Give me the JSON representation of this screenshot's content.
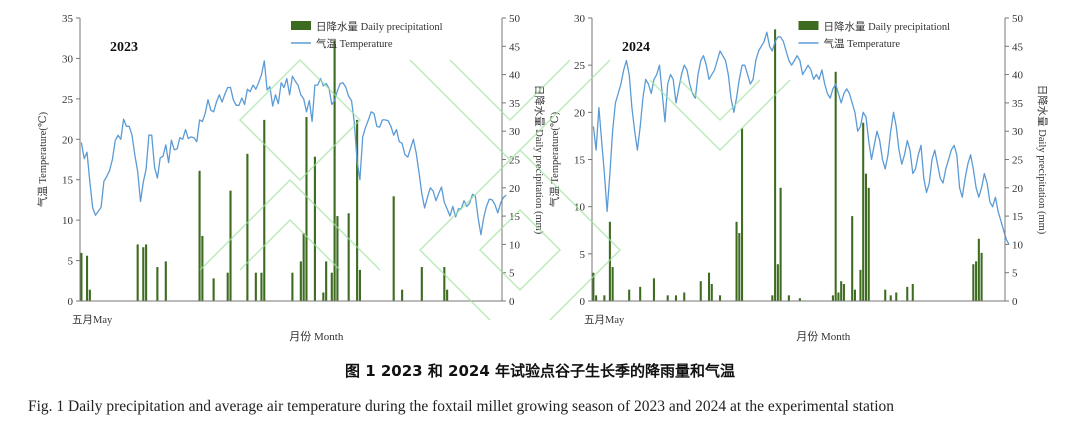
{
  "figure": {
    "caption_cn": "图 1    2023 和 2024 年试验点谷子生长季的降雨量和气温",
    "caption_en": "Fig. 1    Daily precipitation and average air temperature during the foxtail millet growing season of 2023 and 2024 at the experimental station"
  },
  "colors": {
    "bar": "#3d6b1f",
    "line": "#5b9bd5",
    "axis": "#777777",
    "watermark": "#9fe39f"
  },
  "chart_data": [
    {
      "type": "bar+line",
      "panel_label": "2023",
      "ylabel_left": "气温 Temperature(℃)",
      "ylabel_right": "日降水量 Daily precipitation (mm)",
      "xlabel": "月份 Month",
      "x_tick_label": "五月May",
      "legend": [
        "日降水量 Daily precipitationl",
        "气温 Temperature"
      ],
      "legend_position": "top-center",
      "ylim_left": [
        0,
        35
      ],
      "ylim_right": [
        0,
        50
      ],
      "yticks_left": [
        0,
        5,
        10,
        15,
        20,
        25,
        30,
        35
      ],
      "yticks_right": [
        0,
        5,
        10,
        15,
        20,
        25,
        30,
        35,
        40,
        45,
        50
      ],
      "day_count": 150,
      "series": [
        {
          "name": "日降水量 Daily precipitationl",
          "kind": "bar",
          "axis": "right",
          "points": [
            [
              1,
              8.5
            ],
            [
              3,
              8
            ],
            [
              4,
              2
            ],
            [
              21,
              10
            ],
            [
              23,
              9.5
            ],
            [
              24,
              10
            ],
            [
              28,
              6
            ],
            [
              31,
              7
            ],
            [
              43,
              23
            ],
            [
              44,
              11.5
            ],
            [
              48,
              4
            ],
            [
              53,
              5
            ],
            [
              54,
              19.5
            ],
            [
              60,
              26
            ],
            [
              63,
              5
            ],
            [
              65,
              5
            ],
            [
              66,
              32
            ],
            [
              76,
              5
            ],
            [
              79,
              7
            ],
            [
              80,
              12
            ],
            [
              81,
              32.5
            ],
            [
              84,
              25.5
            ],
            [
              87,
              1.5
            ],
            [
              88,
              7
            ],
            [
              90,
              5
            ],
            [
              91,
              46
            ],
            [
              92,
              15
            ],
            [
              96,
              15.5
            ],
            [
              99,
              32
            ],
            [
              100,
              5.5
            ],
            [
              112,
              18.5
            ],
            [
              115,
              2
            ],
            [
              122,
              6
            ],
            [
              130,
              6
            ],
            [
              131,
              2
            ]
          ]
        },
        {
          "name": "气温 Temperature",
          "kind": "line",
          "axis": "left",
          "values": [
            19.6,
            17.6,
            18.4,
            14.8,
            11.5,
            10.6,
            11.1,
            11.6,
            14.8,
            15.4,
            16.1,
            17.5,
            19.8,
            20.5,
            20.0,
            22.5,
            21.6,
            21.6,
            20.5,
            18.0,
            16.0,
            12.3,
            14.7,
            16.3,
            20.5,
            20.5,
            16.5,
            15.2,
            17.7,
            17.9,
            19.3,
            17.1,
            19.9,
            18.7,
            18.8,
            20.2,
            20.0,
            21.2,
            20.1,
            20.3,
            20.2,
            19.7,
            22.4,
            22.2,
            23.2,
            24.9,
            23.6,
            23.4,
            24.6,
            25.5,
            24.6,
            25.6,
            26.4,
            26.4,
            24.9,
            24.2,
            24.2,
            25.1,
            24.3,
            26.2,
            25.9,
            26.7,
            26.2,
            27.0,
            28.0,
            29.7,
            26.1,
            26.5,
            24.1,
            25.5,
            24.4,
            27.0,
            26.4,
            27.5,
            25.5,
            27.8,
            27.2,
            26.7,
            25.5,
            25.0,
            23.4,
            24.8,
            22.2,
            26.7,
            26.7,
            27.5,
            26.6,
            26.9,
            26.3,
            24.3,
            24.8,
            26.0,
            26.9,
            27.0,
            26.4,
            25.3,
            24.8,
            22.1,
            17.3,
            15.0,
            20.3,
            21.5,
            22.4,
            23.4,
            23.2,
            21.6,
            21.5,
            22.4,
            22.4,
            22.3,
            21.6,
            20.5,
            21.2,
            19.7,
            19.5,
            18.1,
            17.8,
            18.9,
            20.0,
            18.3,
            15.9,
            13.3,
            11.5,
            12.8,
            14.0,
            13.6,
            12.4,
            13.3,
            14.1,
            12.2,
            11.4,
            10.5,
            11.7,
            10.4,
            11.4,
            11.4,
            12.4,
            11.7,
            12.1,
            13.2,
            13.0,
            10.3,
            8.2,
            10.3,
            11.7,
            12.6,
            12.5,
            11.9,
            10.9,
            12.1,
            12.8,
            13.1
          ]
        }
      ]
    },
    {
      "type": "bar+line",
      "panel_label": "2024",
      "ylabel_left": "气温 Temperature(℃)",
      "ylabel_right": "日降水量 Daily precipitation (mm)",
      "xlabel": "月份 Month",
      "x_tick_label": "五月May",
      "legend": [
        "日降水量 Daily precipitationl",
        "气温 Temperature"
      ],
      "legend_position": "top-center",
      "ylim_left": [
        0,
        30
      ],
      "ylim_right": [
        0,
        50
      ],
      "yticks_left": [
        0,
        5,
        10,
        15,
        20,
        25,
        30
      ],
      "yticks_right": [
        0,
        5,
        10,
        15,
        20,
        25,
        30,
        35,
        40,
        45,
        50
      ],
      "day_count": 150,
      "series": [
        {
          "name": "日降水量 Daily precipitationl",
          "kind": "bar",
          "axis": "right",
          "points": [
            [
              1,
              5
            ],
            [
              2,
              1
            ],
            [
              5,
              1
            ],
            [
              7,
              14
            ],
            [
              8,
              6
            ],
            [
              14,
              2
            ],
            [
              18,
              2.5
            ],
            [
              23,
              4
            ],
            [
              28,
              1
            ],
            [
              31,
              1
            ],
            [
              34,
              1.5
            ],
            [
              40,
              3.5
            ],
            [
              43,
              5
            ],
            [
              44,
              3
            ],
            [
              47,
              1
            ],
            [
              53,
              14
            ],
            [
              54,
              12
            ],
            [
              55,
              30.5
            ],
            [
              66,
              1
            ],
            [
              67,
              48
            ],
            [
              68,
              6.5
            ],
            [
              69,
              20
            ],
            [
              72,
              1
            ],
            [
              76,
              0.5
            ],
            [
              88,
              1
            ],
            [
              89,
              40.5
            ],
            [
              90,
              1.5
            ],
            [
              91,
              3.5
            ],
            [
              92,
              3
            ],
            [
              95,
              15
            ],
            [
              96,
              2
            ],
            [
              98,
              5.5
            ],
            [
              99,
              31.5
            ],
            [
              100,
              22.5
            ],
            [
              101,
              20
            ],
            [
              107,
              2
            ],
            [
              109,
              1
            ],
            [
              111,
              1.5
            ],
            [
              115,
              2.5
            ],
            [
              117,
              3
            ],
            [
              139,
              6.5
            ],
            [
              140,
              7
            ],
            [
              141,
              11
            ],
            [
              142,
              8.5
            ]
          ]
        },
        {
          "name": "气温 Temperature",
          "kind": "line",
          "axis": "left",
          "values": [
            18.5,
            16.0,
            20.5,
            17.0,
            13.5,
            9.5,
            13.5,
            18.0,
            21.0,
            22.0,
            23.0,
            24.5,
            25.5,
            24.0,
            20.5,
            18.0,
            16.0,
            18.5,
            21.5,
            23.5,
            23.0,
            22.0,
            23.5,
            24.0,
            25.0,
            22.0,
            19.0,
            23.0,
            24.0,
            23.5,
            21.0,
            22.5,
            24.0,
            25.0,
            24.5,
            23.0,
            22.0,
            21.5,
            24.0,
            25.5,
            26.0,
            25.0,
            23.5,
            24.0,
            24.5,
            25.5,
            26.5,
            26.0,
            25.5,
            24.0,
            21.5,
            20.0,
            21.5,
            23.5,
            25.0,
            25.0,
            24.0,
            23.0,
            23.5,
            25.5,
            26.5,
            27.0,
            27.5,
            28.5,
            27.0,
            26.5,
            27.5,
            28.0,
            28.0,
            27.5,
            26.5,
            25.5,
            25.0,
            25.5,
            26.0,
            25.5,
            24.0,
            24.5,
            25.0,
            24.5,
            23.5,
            24.0,
            23.5,
            24.5,
            23.0,
            22.0,
            21.5,
            22.5,
            23.0,
            22.0,
            21.0,
            22.0,
            22.5,
            22.0,
            21.0,
            20.0,
            18.0,
            18.5,
            20.0,
            19.5,
            17.0,
            15.0,
            16.5,
            18.0,
            17.0,
            15.0,
            14.0,
            15.5,
            18.0,
            20.0,
            18.5,
            16.0,
            14.5,
            15.5,
            17.0,
            16.0,
            13.5,
            14.0,
            15.5,
            16.5,
            13.0,
            11.5,
            12.5,
            15.0,
            16.0,
            14.5,
            13.0,
            12.5,
            14.0,
            15.0,
            16.0,
            16.5,
            15.5,
            12.0,
            11.0,
            13.0,
            14.5,
            15.5,
            14.0,
            12.0,
            11.0,
            12.0,
            13.5,
            12.5,
            10.5,
            10.0,
            11.0,
            9.5,
            8.5,
            7.5,
            6.5,
            6.0
          ]
        }
      ]
    }
  ]
}
